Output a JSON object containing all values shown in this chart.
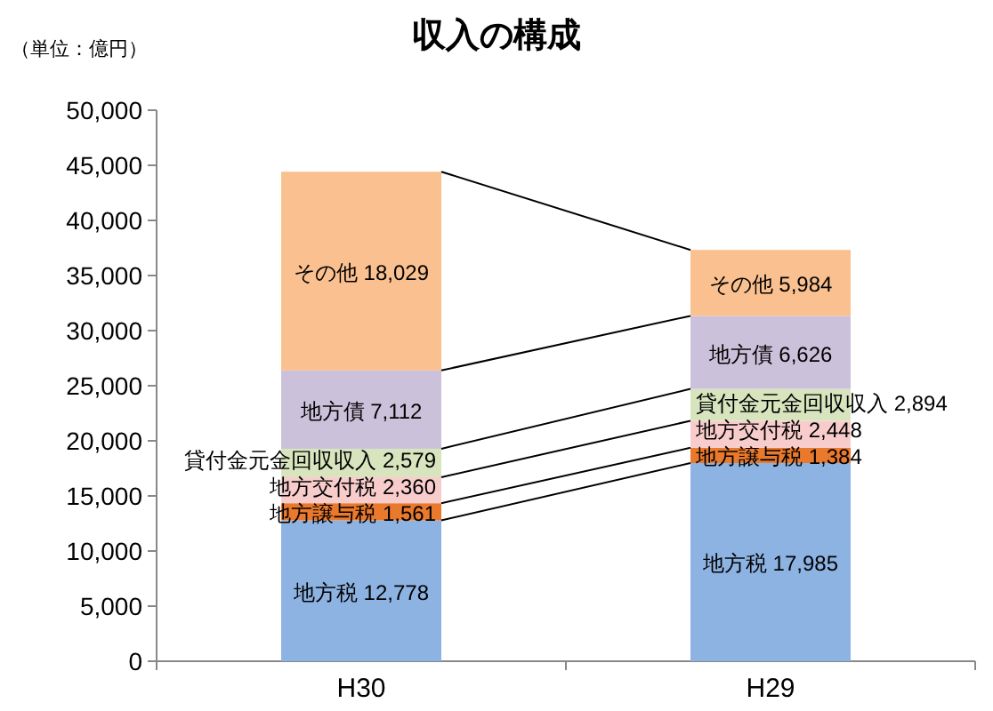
{
  "chart_data": {
    "type": "bar",
    "stacked": true,
    "title": "収入の構成",
    "annotations": [
      "（単位：億円）"
    ],
    "categories": [
      "H30",
      "H29"
    ],
    "series": [
      {
        "name": "地方税",
        "color": "#8db3e2",
        "values": [
          12778,
          17985
        ],
        "value_labels": [
          "12,778",
          "17,985"
        ]
      },
      {
        "name": "地方譲与税",
        "color": "#e9792c",
        "values": [
          1561,
          1384
        ],
        "value_labels": [
          "1,561",
          "1,384"
        ]
      },
      {
        "name": "地方交付税",
        "color": "#f9cccc",
        "values": [
          2360,
          2448
        ],
        "value_labels": [
          "2,360",
          "2,448"
        ]
      },
      {
        "name": "貸付金元金回収収入",
        "color": "#d7e4bd",
        "values": [
          2579,
          2894
        ],
        "value_labels": [
          "2,579",
          "2,894"
        ]
      },
      {
        "name": "地方債",
        "color": "#ccc1da",
        "values": [
          7112,
          6626
        ],
        "value_labels": [
          "7,112",
          "6,626"
        ]
      },
      {
        "name": "その他",
        "color": "#fac090",
        "values": [
          18029,
          5984
        ],
        "value_labels": [
          "18,029",
          "5,984"
        ]
      }
    ],
    "ylim": [
      0,
      50000
    ],
    "yticks": [
      0,
      {
        "value": 5000,
        "label": "5,000"
      },
      {
        "value": 10000,
        "label": "10,000"
      },
      {
        "value": 15000,
        "label": "15,000"
      },
      {
        "value": 20000,
        "label": "20,000"
      },
      {
        "value": 25000,
        "label": "25,000"
      },
      {
        "value": 30000,
        "label": "30,000"
      },
      {
        "value": 35000,
        "label": "35,000"
      },
      {
        "value": 40000,
        "label": "40,000"
      },
      {
        "value": 45000,
        "label": "45,000"
      },
      {
        "value": 50000,
        "label": "50,000"
      }
    ],
    "grid": false
  }
}
